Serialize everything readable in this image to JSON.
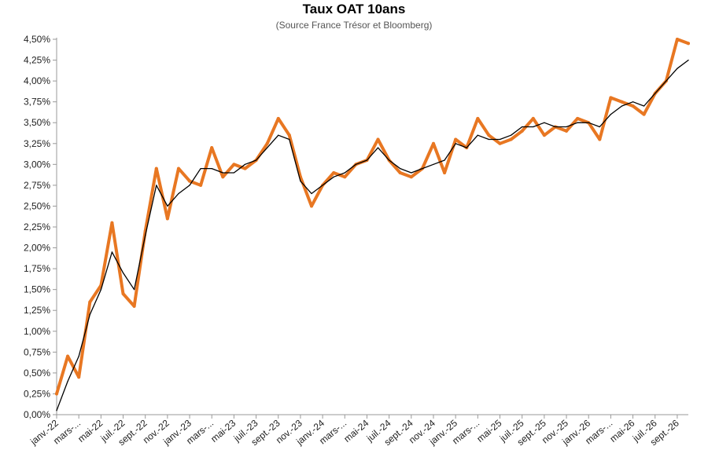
{
  "chart_data": {
    "type": "line",
    "title": "Taux OAT 10ans",
    "subtitle": "(Source France Trésor et Bloomberg)",
    "xlabel": "",
    "ylabel": "",
    "ylim": [
      0,
      4.5
    ],
    "y_ticks": [
      "0,00%",
      "0,25%",
      "0,50%",
      "0,75%",
      "1,00%",
      "1,25%",
      "1,50%",
      "1,75%",
      "2,00%",
      "2,25%",
      "2,50%",
      "2,75%",
      "3,00%",
      "3,25%",
      "3,50%",
      "3,75%",
      "4,00%",
      "4,25%",
      "4,50%"
    ],
    "x_ticks": [
      "janv.-22",
      "mars-...",
      "mai-22",
      "juil.-22",
      "sept.-22",
      "nov.-22",
      "janv.-23",
      "mars-...",
      "mai-23",
      "juil.-23",
      "sept.-23",
      "nov.-23",
      "janv.-24",
      "mars-...",
      "mai-24",
      "juil.-24",
      "sept.-24",
      "nov.-24",
      "janv.-25",
      "mars-...",
      "mai-25",
      "juil.-25",
      "sept.-25",
      "nov.-25",
      "janv.-26",
      "mars-...",
      "mai-26",
      "juil.-26",
      "sept.-26"
    ],
    "grid": false,
    "series": [
      {
        "color": "#E87722",
        "style": "thick",
        "x": [
          "janv.-22",
          "févr.-22",
          "mars-22",
          "avr.-22",
          "mai-22",
          "juin-22",
          "juil.-22",
          "août-22",
          "sept.-22",
          "oct.-22",
          "nov.-22",
          "déc.-22",
          "janv.-23",
          "févr.-23",
          "mars-23",
          "avr.-23",
          "mai-23",
          "juin-23",
          "juil.-23",
          "août-23",
          "sept.-23",
          "oct.-23",
          "nov.-23",
          "déc.-23",
          "janv.-24",
          "févr.-24",
          "mars-24",
          "avr.-24",
          "mai-24",
          "juin-24",
          "juil.-24",
          "août-24",
          "sept.-24",
          "oct.-24",
          "nov.-24",
          "déc.-24",
          "janv.-25",
          "févr.-25",
          "mars-25",
          "avr.-25",
          "mai-25",
          "juin-25",
          "juil.-25",
          "août-25",
          "sept.-25",
          "oct.-25",
          "nov.-25",
          "déc.-25",
          "janv.-26",
          "févr.-26",
          "mars-26",
          "avr.-26",
          "mai-26",
          "juin-26",
          "juil.-26",
          "août-26",
          "sept.-26",
          "oct.-26"
        ],
        "values": [
          0.25,
          0.7,
          0.45,
          1.35,
          1.55,
          2.3,
          1.45,
          1.3,
          2.2,
          2.95,
          2.35,
          2.95,
          2.8,
          2.75,
          3.2,
          2.85,
          3.0,
          2.95,
          3.05,
          3.25,
          3.55,
          3.35,
          2.85,
          2.5,
          2.75,
          2.9,
          2.85,
          3.0,
          3.05,
          3.3,
          3.05,
          2.9,
          2.85,
          2.95,
          3.25,
          2.9,
          3.3,
          3.2,
          3.55,
          3.35,
          3.25,
          3.3,
          3.4,
          3.55,
          3.35,
          3.45,
          3.4,
          3.55,
          3.5,
          3.3,
          3.8,
          3.75,
          3.7,
          3.6,
          3.85,
          4.0,
          4.5,
          4.45
        ]
      },
      {
        "color": "#000000",
        "style": "thin",
        "x": [
          "janv.-22",
          "févr.-22",
          "mars-22",
          "avr.-22",
          "mai-22",
          "juin-22",
          "juil.-22",
          "août-22",
          "sept.-22",
          "oct.-22",
          "nov.-22",
          "déc.-22",
          "janv.-23",
          "févr.-23",
          "mars-23",
          "avr.-23",
          "mai-23",
          "juin-23",
          "juil.-23",
          "août-23",
          "sept.-23",
          "oct.-23",
          "nov.-23",
          "déc.-23",
          "janv.-24",
          "févr.-24",
          "mars-24",
          "avr.-24",
          "mai-24",
          "juin-24",
          "juil.-24",
          "août-24",
          "sept.-24",
          "oct.-24",
          "nov.-24",
          "déc.-24",
          "janv.-25",
          "févr.-25",
          "mars-25",
          "avr.-25",
          "mai-25",
          "juin-25",
          "juil.-25",
          "août-25",
          "sept.-25",
          "oct.-25",
          "nov.-25",
          "déc.-25",
          "janv.-26",
          "févr.-26",
          "mars-26",
          "avr.-26",
          "mai-26",
          "juin-26",
          "juil.-26",
          "août-26",
          "sept.-26",
          "oct.-26"
        ],
        "values": [
          0.05,
          0.4,
          0.7,
          1.2,
          1.5,
          1.95,
          1.7,
          1.5,
          2.15,
          2.75,
          2.5,
          2.65,
          2.75,
          2.95,
          2.95,
          2.9,
          2.9,
          3.0,
          3.05,
          3.2,
          3.35,
          3.3,
          2.8,
          2.65,
          2.75,
          2.85,
          2.9,
          3.0,
          3.05,
          3.2,
          3.05,
          2.95,
          2.9,
          2.95,
          3.0,
          3.05,
          3.25,
          3.2,
          3.35,
          3.3,
          3.3,
          3.35,
          3.45,
          3.45,
          3.5,
          3.45,
          3.45,
          3.5,
          3.5,
          3.45,
          3.6,
          3.7,
          3.75,
          3.7,
          3.85,
          4.0,
          4.15,
          4.25
        ]
      }
    ]
  }
}
